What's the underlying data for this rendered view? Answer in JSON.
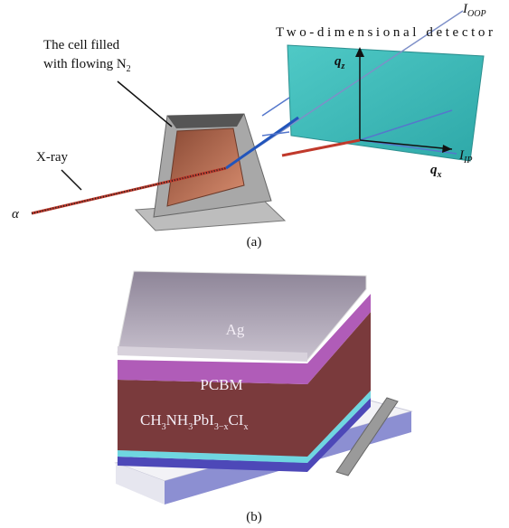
{
  "panel_a": {
    "detector_label": "Two-dimensional detector",
    "i_oop": {
      "symbol": "I",
      "sub": "OOP"
    },
    "q_z": {
      "symbol": "q",
      "sub": "z"
    },
    "cell_label": {
      "line1": "The cell filled",
      "line2": "with flowing N",
      "line2_sub": "2"
    },
    "xray_label": "X-ray",
    "alpha": "α",
    "q_x": {
      "symbol": "q",
      "sub": "x"
    },
    "i_ip": {
      "symbol": "I",
      "sub": "IP"
    },
    "caption": "(a)"
  },
  "panel_b": {
    "ag": "Ag",
    "pcbm": "PCBM",
    "formula": [
      "CH",
      "3",
      "NH",
      "3",
      "PbI",
      "3−x",
      "CI",
      "x"
    ],
    "caption": "(b)"
  }
}
